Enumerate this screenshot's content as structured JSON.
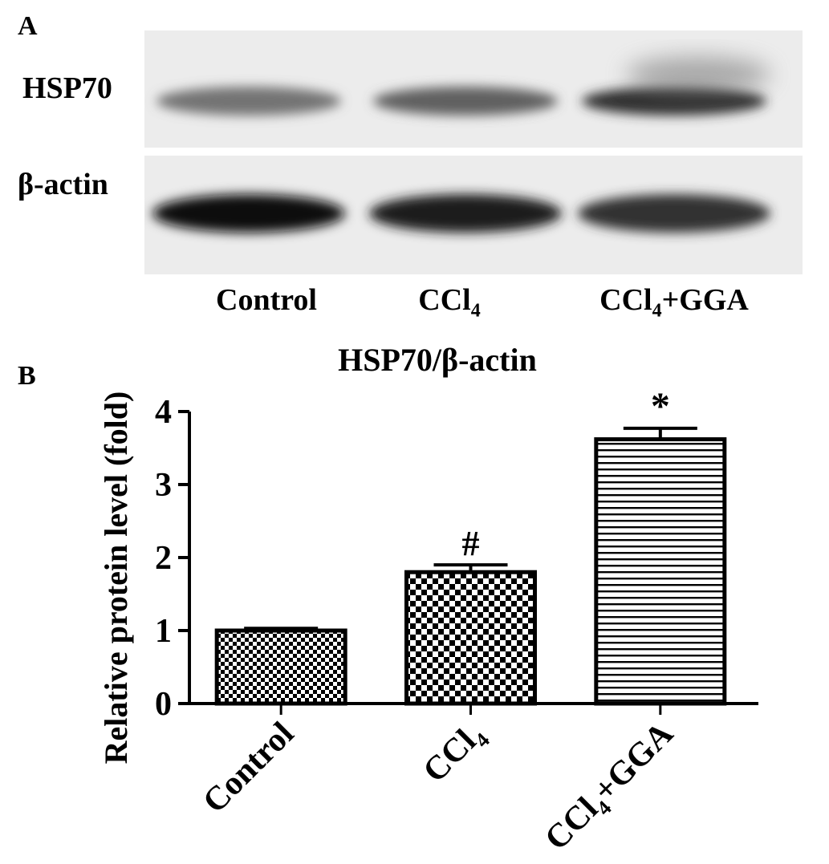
{
  "panel_a": {
    "label": "A",
    "blots": [
      {
        "name": "HSP70",
        "intensity": [
          0.55,
          0.62,
          0.8
        ]
      },
      {
        "name": "β-actin",
        "intensity": [
          0.95,
          0.88,
          0.8
        ]
      }
    ],
    "lanes": [
      {
        "main": "Control",
        "sub": "",
        "rest": ""
      },
      {
        "main": "CCl",
        "sub": "4",
        "rest": ""
      },
      {
        "main": "CCl",
        "sub": "4",
        "rest": "+GGA"
      }
    ]
  },
  "panel_b": {
    "label": "B"
  },
  "chart_data": {
    "type": "bar",
    "title": "HSP70/β-actin",
    "ylabel": "Relative protein level (fold)",
    "xlabel": "",
    "categories": [
      "Control",
      "CCl4",
      "CCl4+GGA"
    ],
    "category_labels": [
      {
        "main": "Control",
        "sub": "",
        "rest": ""
      },
      {
        "main": "CCl",
        "sub": "4",
        "rest": ""
      },
      {
        "main": "CCl",
        "sub": "4",
        "rest": "+GGA"
      }
    ],
    "values": [
      1.0,
      1.8,
      3.62
    ],
    "errors": [
      0.03,
      0.1,
      0.15
    ],
    "annotations": [
      "",
      "#",
      "*"
    ],
    "patterns": [
      "checker-fine",
      "checker-coarse",
      "horizontal-lines"
    ],
    "ylim": [
      0,
      4
    ],
    "yticks": [
      0,
      1,
      2,
      3,
      4
    ],
    "grid": false,
    "legend": "none"
  }
}
